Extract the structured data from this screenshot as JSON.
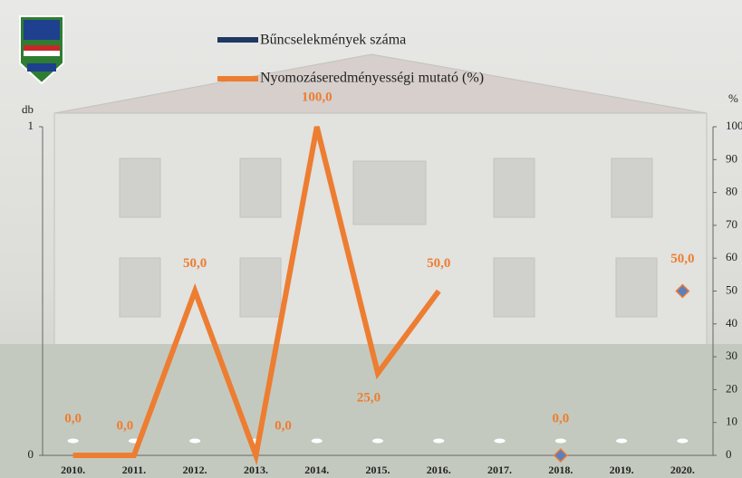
{
  "chart_data": {
    "type": "bar-line",
    "categories": [
      "2010.",
      "2011.",
      "2012.",
      "2013.",
      "2014.",
      "2015.",
      "2016.",
      "2017.",
      "2018.",
      "2019.",
      "2020."
    ],
    "series": [
      {
        "name": "Bűncselekmények száma",
        "color": "#1f3864",
        "type": "bar",
        "values": [
          0,
          0,
          0,
          0,
          0,
          0,
          0,
          0,
          0,
          0,
          0
        ]
      },
      {
        "name": "Nyomozáseredményességi mutató (%)",
        "color": "#ed7d31",
        "type": "line",
        "axis": "y2",
        "values": [
          0,
          0,
          50,
          0,
          100,
          25,
          50,
          null,
          0,
          null,
          50
        ],
        "value_labels": [
          "0,0",
          "0,0",
          "50,0",
          "0,0",
          "100,0",
          "25,0",
          "50,0",
          null,
          "0,0",
          null,
          "50,0"
        ]
      }
    ],
    "ylabel": "db",
    "ylim": [
      0,
      1
    ],
    "yticks": [
      0,
      1
    ],
    "y2label": "%",
    "y2lim": [
      0,
      100
    ],
    "y2ticks": [
      0,
      10,
      20,
      30,
      40,
      50,
      60,
      70,
      80,
      90,
      100
    ]
  }
}
